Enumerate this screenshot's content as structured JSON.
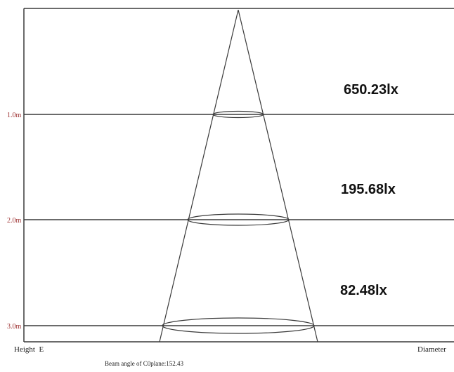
{
  "diagram": {
    "heights": [
      {
        "label": "1.0m",
        "illuminance": "650.23lx"
      },
      {
        "label": "2.0m",
        "illuminance": "195.68lx"
      },
      {
        "label": "3.0m",
        "illuminance": "82.48lx"
      }
    ],
    "footer": {
      "left_label": "Height  E",
      "right_label": "Diameter"
    },
    "beam_angle_text": "Beam angle of C0plane:152.43",
    "colors": {
      "line": "#3a3a3a",
      "height_label": "#9b2d2d",
      "lux_text": "#111111"
    }
  }
}
